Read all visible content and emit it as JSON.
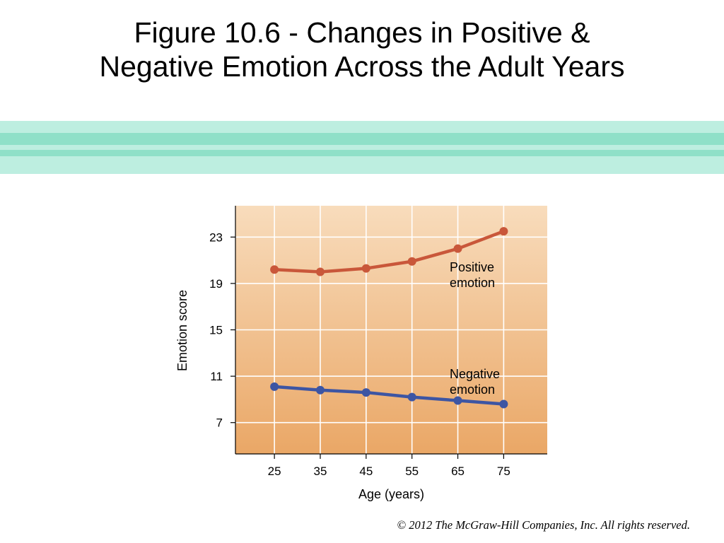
{
  "slide": {
    "title_line1": "Figure 10.6 - Changes in Positive &",
    "title_line2": "Negative Emotion Across the Adult Years",
    "copyright": "© 2012 The McGraw-Hill Companies, Inc. All rights reserved."
  },
  "colors": {
    "band_light": "#bdeee0",
    "band_mid": "#8fe0c8",
    "plot_top": "#f8dcbc",
    "plot_bottom": "#eaa766",
    "positive_series": "#c9573a",
    "negative_series": "#3d55a3",
    "gridline": "#ffffff"
  },
  "chart_data": {
    "type": "line",
    "title": "",
    "xlabel": "Age (years)",
    "ylabel": "Emotion score",
    "x": [
      25,
      35,
      45,
      55,
      65,
      75
    ],
    "xlim": [
      16.5,
      84.5
    ],
    "ylim": [
      4.3,
      25.7
    ],
    "yticks": [
      7,
      11,
      15,
      19,
      23
    ],
    "xtick_labels": [
      "25",
      "35",
      "45",
      "55",
      "65",
      "75"
    ],
    "ytick_labels": [
      "7",
      "11",
      "15",
      "19",
      "23"
    ],
    "grid": true,
    "legend": "none",
    "series": [
      {
        "name": "Positive emotion",
        "label_lines": [
          "Positive",
          "emotion"
        ],
        "values": [
          20.2,
          20.0,
          20.3,
          20.9,
          22.0,
          23.5
        ]
      },
      {
        "name": "Negative emotion",
        "label_lines": [
          "Negative",
          "emotion"
        ],
        "values": [
          10.1,
          9.8,
          9.6,
          9.2,
          8.9,
          8.6
        ]
      }
    ]
  }
}
